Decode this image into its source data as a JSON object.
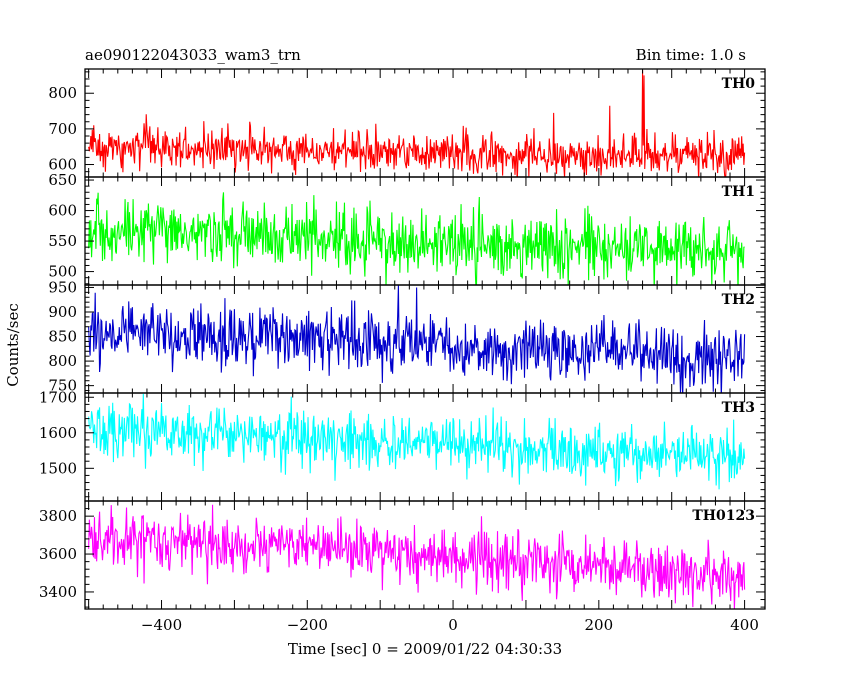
{
  "header": {
    "title": "ae090122043033_wam3_trn",
    "bin_time": "Bin time: 1.0 s"
  },
  "chart_data": {
    "type": "line",
    "xlabel": "Time [sec] 0 = 2009/01/22 04:30:33",
    "ylabel": "Counts/sec",
    "xlim": [
      -505,
      428
    ],
    "x_range": [
      -500,
      400
    ],
    "bin_seconds": 1.0,
    "x_ticks": [
      -400,
      -200,
      0,
      200,
      400
    ],
    "x_tick_labels": [
      "−400",
      "−200",
      "0",
      "200",
      "400"
    ],
    "series": [
      {
        "name": "TH0",
        "color": "#ff0000",
        "ylim": [
          565,
          868
        ],
        "y_ticks": [
          600,
          700,
          800
        ],
        "y_tick_labels": [
          "600",
          "700",
          "800"
        ],
        "trend": [
          [
            -500,
            650
          ],
          [
            -300,
            645
          ],
          [
            0,
            630
          ],
          [
            400,
            625
          ]
        ],
        "noise": 28,
        "spikes": [
          [
            138,
            745
          ],
          [
            215,
            765
          ],
          [
            260,
            865
          ],
          [
            262,
            850
          ]
        ]
      },
      {
        "name": "TH1",
        "color": "#00ff00",
        "ylim": [
          478,
          655
        ],
        "y_ticks": [
          500,
          550,
          600,
          650
        ],
        "y_tick_labels": [
          "500",
          "550",
          "600",
          "650"
        ],
        "trend": [
          [
            -500,
            565
          ],
          [
            -200,
            555
          ],
          [
            0,
            545
          ],
          [
            400,
            535
          ]
        ],
        "noise": 26,
        "spikes": []
      },
      {
        "name": "TH2",
        "color": "#0000cc",
        "ylim": [
          735,
          955
        ],
        "y_ticks": [
          750,
          800,
          850,
          900,
          950
        ],
        "y_tick_labels": [
          "750",
          "800",
          "850",
          "900",
          "950"
        ],
        "trend": [
          [
            -500,
            855
          ],
          [
            -250,
            850
          ],
          [
            0,
            830
          ],
          [
            400,
            810
          ]
        ],
        "noise": 30,
        "spikes": [
          [
            -170,
            770
          ],
          [
            -75,
            955
          ],
          [
            -50,
            950
          ]
        ]
      },
      {
        "name": "TH3",
        "color": "#00ffff",
        "ylim": [
          1408,
          1712
        ],
        "y_ticks": [
          1500,
          1600,
          1700
        ],
        "y_tick_labels": [
          "1500",
          "1600",
          "1700"
        ],
        "trend": [
          [
            -500,
            1605
          ],
          [
            -200,
            1590
          ],
          [
            0,
            1565
          ],
          [
            400,
            1530
          ]
        ],
        "noise": 40,
        "spikes": []
      },
      {
        "name": "TH0123",
        "color": "#ff00ff",
        "ylim": [
          3310,
          3880
        ],
        "y_ticks": [
          3400,
          3600,
          3800
        ],
        "y_tick_labels": [
          "3400",
          "3600",
          "3800"
        ],
        "trend": [
          [
            -500,
            3680
          ],
          [
            -200,
            3640
          ],
          [
            0,
            3580
          ],
          [
            400,
            3480
          ]
        ],
        "noise": 75,
        "spikes": [
          [
            -330,
            3860
          ]
        ]
      }
    ]
  }
}
